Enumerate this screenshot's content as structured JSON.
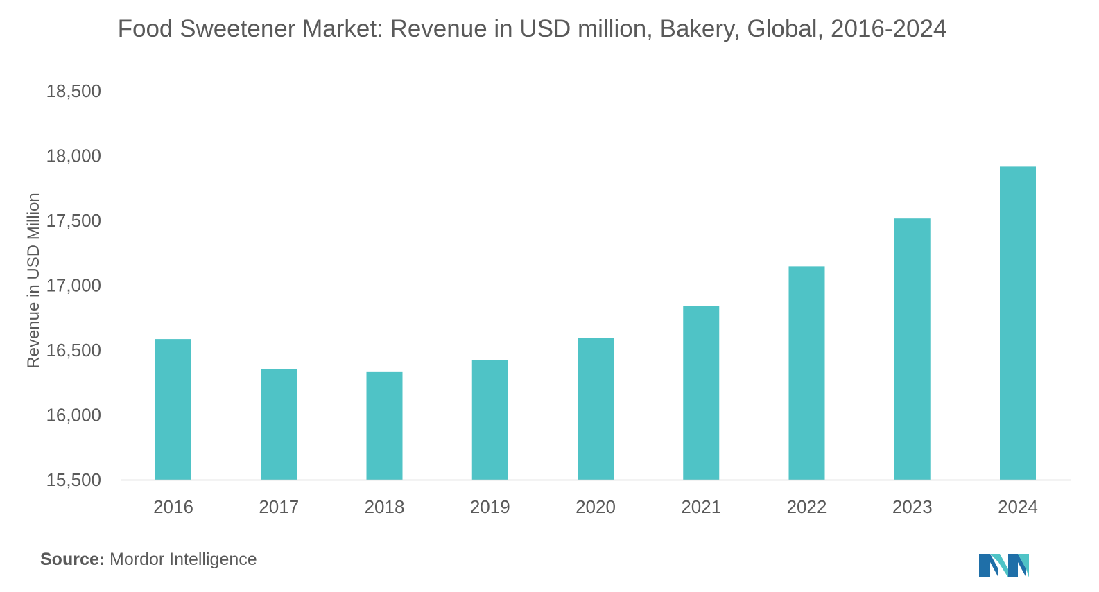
{
  "chart_data": {
    "type": "bar",
    "title": "Food Sweetener Market: Revenue in USD million, Bakery, Global, 2016-2024",
    "xlabel": "",
    "ylabel": "Revenue in USD Million",
    "categories": [
      "2016",
      "2017",
      "2018",
      "2019",
      "2020",
      "2021",
      "2022",
      "2023",
      "2024"
    ],
    "values": [
      16585,
      16355,
      16335,
      16425,
      16595,
      16840,
      17145,
      17515,
      17915
    ],
    "ylim": [
      15500,
      18500
    ],
    "yticks": [
      15500,
      16000,
      16500,
      17000,
      17500,
      18000,
      18500
    ],
    "ytick_labels": [
      "15,500",
      "16,000",
      "16,500",
      "17,000",
      "17,500",
      "18,000",
      "18,500"
    ],
    "grid": false,
    "bar_color": "#4fc3c6"
  },
  "source": {
    "label": "Source:",
    "text": "Mordor Intelligence"
  },
  "logo": {
    "icon": "mordor-intelligence-logo",
    "colors": [
      "#1f6fa8",
      "#4fc3c6"
    ]
  }
}
